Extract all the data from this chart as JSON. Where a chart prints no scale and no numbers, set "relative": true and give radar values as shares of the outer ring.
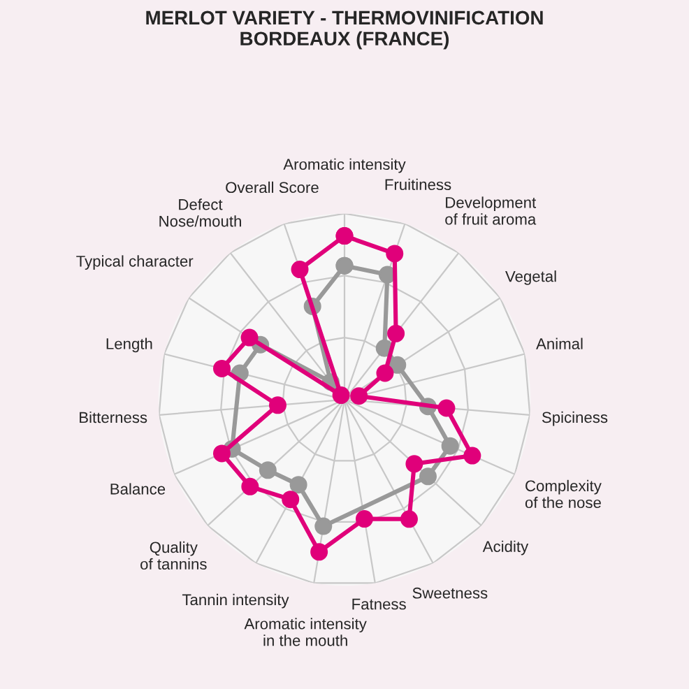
{
  "chart_data": {
    "type": "radar",
    "title": "MERLOT VARIETY - THERMOVINIFICATION\nBORDEAUX (FRANCE)",
    "relative": true,
    "grid": true,
    "marker": "circle",
    "line_style": "solid",
    "categories": [
      "Aromatic intensity",
      "Fruitiness",
      "Development\nof fruit aroma",
      "Vegetal",
      "Animal",
      "Spiciness",
      "Complexity\nof the nose",
      "Acidity",
      "Sweetness",
      "Fatness",
      "Aromatic intensity\nin the mouth",
      "Tannin intensity",
      "Quality\nof tannins",
      "Balance",
      "Bitterness",
      "Length",
      "Typical character",
      "Defect\nNose/mouth",
      "Overall Score"
    ],
    "series": [
      {
        "color": "#999999",
        "values": [
          0.72,
          0.71,
          0.35,
          0.34,
          null,
          0.45,
          0.62,
          0.61,
          null,
          null,
          0.69,
          0.52,
          0.56,
          0.66,
          null,
          0.58,
          0.54,
          0.12,
          0.53
        ]
      },
      {
        "color": "#e0007a",
        "values": [
          0.88,
          0.83,
          0.45,
          0.26,
          0.08,
          0.55,
          0.75,
          0.51,
          0.73,
          0.65,
          0.83,
          0.61,
          0.69,
          0.72,
          0.36,
          0.68,
          0.61,
          0.03,
          0.74
        ]
      }
    ]
  }
}
